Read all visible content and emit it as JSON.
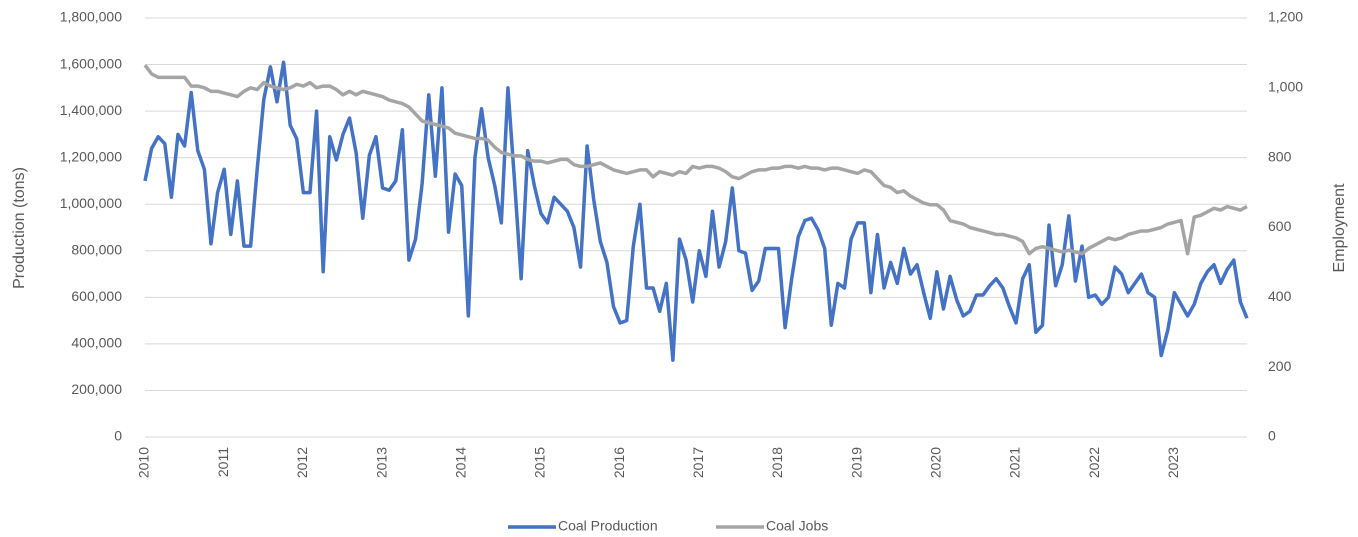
{
  "chart_data": {
    "type": "line",
    "y_label": "Production (tons)",
    "y2_label": "Employment",
    "categories": [
      "2010",
      null,
      null,
      null,
      null,
      null,
      null,
      null,
      null,
      null,
      null,
      null,
      "2011",
      null,
      null,
      null,
      null,
      null,
      null,
      null,
      null,
      null,
      null,
      null,
      "2012",
      null,
      null,
      null,
      null,
      null,
      null,
      null,
      null,
      null,
      null,
      null,
      "2013",
      null,
      null,
      null,
      null,
      null,
      null,
      null,
      null,
      null,
      null,
      null,
      "2014",
      null,
      null,
      null,
      null,
      null,
      null,
      null,
      null,
      null,
      null,
      null,
      "2015",
      null,
      null,
      null,
      null,
      null,
      null,
      null,
      null,
      null,
      null,
      null,
      "2016",
      null,
      null,
      null,
      null,
      null,
      null,
      null,
      null,
      null,
      null,
      null,
      "2017",
      null,
      null,
      null,
      null,
      null,
      null,
      null,
      null,
      null,
      null,
      null,
      "2018",
      null,
      null,
      null,
      null,
      null,
      null,
      null,
      null,
      null,
      null,
      null,
      "2019",
      null,
      null,
      null,
      null,
      null,
      null,
      null,
      null,
      null,
      null,
      null,
      "2020",
      null,
      null,
      null,
      null,
      null,
      null,
      null,
      null,
      null,
      null,
      null,
      "2021",
      null,
      null,
      null,
      null,
      null,
      null,
      null,
      null,
      null,
      null,
      null,
      "2022",
      null,
      null,
      null,
      null,
      null,
      null,
      null,
      null,
      null,
      null,
      null,
      "2023",
      null,
      null,
      null,
      null,
      null,
      null,
      null,
      null,
      null,
      null,
      null
    ],
    "series": [
      {
        "name": "Coal Production",
        "color": "#4472c4",
        "values": [
          1100000,
          1240000,
          1290000,
          1260000,
          1030000,
          1300000,
          1250000,
          1480000,
          1230000,
          1150000,
          830000,
          1050000,
          1150000,
          870000,
          1100000,
          820000,
          820000,
          1150000,
          1450000,
          1590000,
          1440000,
          1610000,
          1340000,
          1280000,
          1050000,
          1050000,
          1400000,
          710000,
          1290000,
          1190000,
          1300000,
          1370000,
          1220000,
          940000,
          1210000,
          1290000,
          1070000,
          1060000,
          1100000,
          1320000,
          760000,
          850000,
          1090000,
          1470000,
          1120000,
          1500000,
          880000,
          1130000,
          1080000,
          520000,
          1200000,
          1410000,
          1200000,
          1080000,
          920000,
          1500000,
          1100000,
          680000,
          1230000,
          1080000,
          960000,
          920000,
          1030000,
          1000000,
          970000,
          900000,
          730000,
          1250000,
          1020000,
          840000,
          750000,
          560000,
          490000,
          500000,
          820000,
          1000000,
          640000,
          640000,
          540000,
          660000,
          330000,
          850000,
          760000,
          580000,
          800000,
          690000,
          970000,
          730000,
          840000,
          1070000,
          800000,
          790000,
          630000,
          670000,
          810000,
          810000,
          810000,
          470000,
          680000,
          860000,
          930000,
          940000,
          890000,
          810000,
          480000,
          660000,
          640000,
          850000,
          920000,
          920000,
          620000,
          870000,
          640000,
          750000,
          660000,
          810000,
          700000,
          740000,
          620000,
          510000,
          710000,
          550000,
          690000,
          590000,
          520000,
          540000,
          610000,
          610000,
          650000,
          680000,
          640000,
          560000,
          490000,
          680000,
          740000,
          450000,
          480000,
          910000,
          650000,
          740000,
          950000,
          670000,
          820000,
          600000,
          610000,
          570000,
          600000,
          730000,
          700000,
          620000,
          660000,
          700000,
          620000,
          600000,
          350000,
          460000,
          620000,
          570000,
          520000,
          570000,
          660000,
          710000,
          740000,
          660000,
          720000,
          760000,
          580000,
          510000
        ]
      },
      {
        "name": "Coal Jobs",
        "color": "#a5a5a5",
        "axis": "y2",
        "values": [
          1065,
          1040,
          1030,
          1030,
          1030,
          1030,
          1030,
          1005,
          1005,
          1000,
          990,
          990,
          985,
          980,
          975,
          990,
          1000,
          995,
          1015,
          1005,
          1000,
          995,
          1000,
          1010,
          1005,
          1015,
          1000,
          1005,
          1005,
          995,
          980,
          990,
          980,
          990,
          985,
          980,
          975,
          965,
          960,
          955,
          945,
          925,
          905,
          900,
          895,
          890,
          885,
          870,
          865,
          860,
          855,
          855,
          850,
          830,
          815,
          810,
          805,
          805,
          795,
          790,
          790,
          785,
          790,
          795,
          795,
          780,
          775,
          775,
          780,
          785,
          775,
          765,
          760,
          755,
          760,
          765,
          765,
          745,
          760,
          755,
          750,
          760,
          755,
          775,
          770,
          775,
          775,
          770,
          760,
          745,
          740,
          750,
          760,
          765,
          765,
          770,
          770,
          775,
          775,
          770,
          775,
          770,
          770,
          765,
          770,
          770,
          765,
          760,
          755,
          765,
          760,
          740,
          720,
          715,
          700,
          705,
          690,
          680,
          670,
          665,
          665,
          650,
          620,
          615,
          610,
          600,
          595,
          590,
          585,
          580,
          580,
          575,
          570,
          560,
          525,
          540,
          545,
          540,
          535,
          530,
          535,
          530,
          525,
          540,
          550,
          560,
          570,
          565,
          570,
          580,
          585,
          590,
          590,
          595,
          600,
          610,
          615,
          620,
          525,
          630,
          635,
          645,
          655,
          650,
          660,
          655,
          650,
          660
        ]
      }
    ],
    "ylim": [
      0,
      1800000
    ],
    "yticks": [
      0,
      {
        "value": 200000,
        "label": "200,000"
      },
      {
        "value": 400000,
        "label": "400,000"
      },
      {
        "value": 600000,
        "label": "600,000"
      },
      {
        "value": 800000,
        "label": "800,000"
      },
      {
        "value": 1000000,
        "label": "1,000,000"
      },
      {
        "value": 1200000,
        "label": "1,200,000"
      },
      {
        "value": 1400000,
        "label": "1,400,000"
      },
      {
        "value": 1600000,
        "label": "1,600,000"
      },
      {
        "value": 1800000,
        "label": "1,800,000"
      }
    ],
    "y2lim": [
      0,
      1200
    ],
    "y2ticks": [
      0,
      200,
      400,
      600,
      800,
      {
        "value": 1000,
        "label": "1,000"
      },
      {
        "value": 1200,
        "label": "1,200"
      }
    ],
    "grid": true,
    "legend": "bottom"
  }
}
